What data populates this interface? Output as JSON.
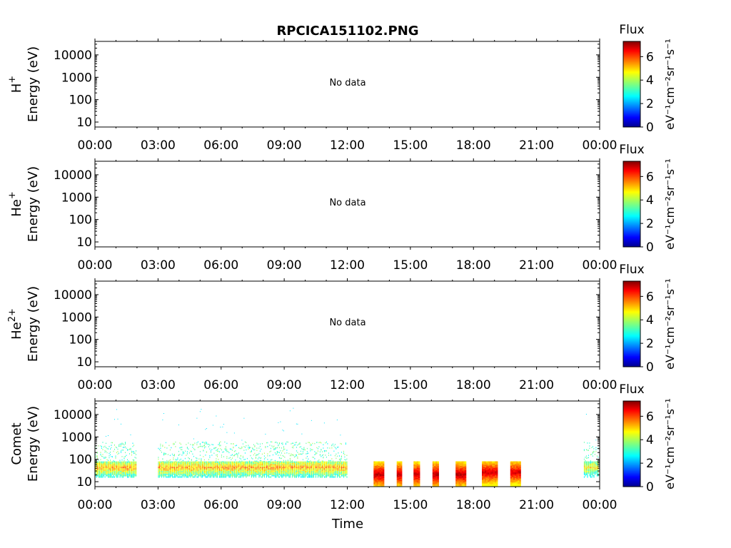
{
  "title": "RPCICA151102.PNG",
  "xlabel": "Time",
  "colorbar": {
    "title": "Flux",
    "label": "eV⁻¹cm⁻²sr⁻¹s⁻¹",
    "ticks": [
      "0",
      "2",
      "4",
      "6"
    ],
    "range": [
      0,
      7.3
    ],
    "colormap": "jet"
  },
  "no_data_text": "No data",
  "chart_data": [
    {
      "type": "heatmap",
      "panel": "H+",
      "species_label": "H",
      "species_sup": "+",
      "ylabel": "Energy (eV)",
      "yscale": "log",
      "ylim": [
        6,
        40000
      ],
      "yticks": [
        "10",
        "100",
        "1000",
        "10000"
      ],
      "xticks": [
        "00:00",
        "03:00",
        "06:00",
        "09:00",
        "12:00",
        "15:00",
        "18:00",
        "21:00",
        "00:00"
      ],
      "xlim_hours": [
        0,
        24
      ],
      "has_data": false
    },
    {
      "type": "heatmap",
      "panel": "He+",
      "species_label": "He",
      "species_sup": "+",
      "ylabel": "Energy (eV)",
      "yscale": "log",
      "ylim": [
        6,
        40000
      ],
      "yticks": [
        "10",
        "100",
        "1000",
        "10000"
      ],
      "xticks": [
        "00:00",
        "03:00",
        "06:00",
        "09:00",
        "12:00",
        "15:00",
        "18:00",
        "21:00",
        "00:00"
      ],
      "xlim_hours": [
        0,
        24
      ],
      "has_data": false
    },
    {
      "type": "heatmap",
      "panel": "He2+",
      "species_label": "He",
      "species_sup": "2+",
      "ylabel": "Energy (eV)",
      "yscale": "log",
      "ylim": [
        6,
        40000
      ],
      "yticks": [
        "10",
        "100",
        "1000",
        "10000"
      ],
      "xticks": [
        "00:00",
        "03:00",
        "06:00",
        "09:00",
        "12:00",
        "15:00",
        "18:00",
        "21:00",
        "00:00"
      ],
      "xlim_hours": [
        0,
        24
      ],
      "has_data": false
    },
    {
      "type": "heatmap",
      "panel": "Comet",
      "species_label": "Comet",
      "species_sup": "",
      "ylabel": "Energy (eV)",
      "yscale": "log",
      "ylim": [
        6,
        40000
      ],
      "yticks": [
        "10",
        "100",
        "1000",
        "10000"
      ],
      "xticks": [
        "00:00",
        "03:00",
        "06:00",
        "09:00",
        "12:00",
        "15:00",
        "18:00",
        "21:00",
        "00:00"
      ],
      "xlim_hours": [
        0,
        24
      ],
      "has_data": true,
      "intervals": [
        {
          "start_h": 0.0,
          "end_h": 1.95,
          "kind": "continuous",
          "peak_energy_eV": 40,
          "peak_flux": 6.0
        },
        {
          "start_h": 3.0,
          "end_h": 12.0,
          "kind": "continuous",
          "peak_energy_eV": 40,
          "peak_flux": 6.0
        },
        {
          "start_h": 13.25,
          "end_h": 13.75,
          "kind": "burst",
          "peak_energy_eV": 20,
          "peak_flux": 7.2
        },
        {
          "start_h": 14.35,
          "end_h": 14.6,
          "kind": "burst",
          "peak_energy_eV": 20,
          "peak_flux": 7.2
        },
        {
          "start_h": 15.15,
          "end_h": 15.45,
          "kind": "burst",
          "peak_energy_eV": 20,
          "peak_flux": 7.2
        },
        {
          "start_h": 16.05,
          "end_h": 16.35,
          "kind": "burst",
          "peak_energy_eV": 20,
          "peak_flux": 7.2
        },
        {
          "start_h": 17.15,
          "end_h": 17.65,
          "kind": "burst",
          "peak_energy_eV": 20,
          "peak_flux": 7.2
        },
        {
          "start_h": 18.4,
          "end_h": 19.15,
          "kind": "burst",
          "peak_energy_eV": 25,
          "peak_flux": 7.0
        },
        {
          "start_h": 19.75,
          "end_h": 20.25,
          "kind": "burst",
          "peak_energy_eV": 25,
          "peak_flux": 7.0
        },
        {
          "start_h": 23.25,
          "end_h": 23.95,
          "kind": "continuous",
          "peak_energy_eV": 40,
          "peak_flux": 5.5
        }
      ]
    }
  ]
}
